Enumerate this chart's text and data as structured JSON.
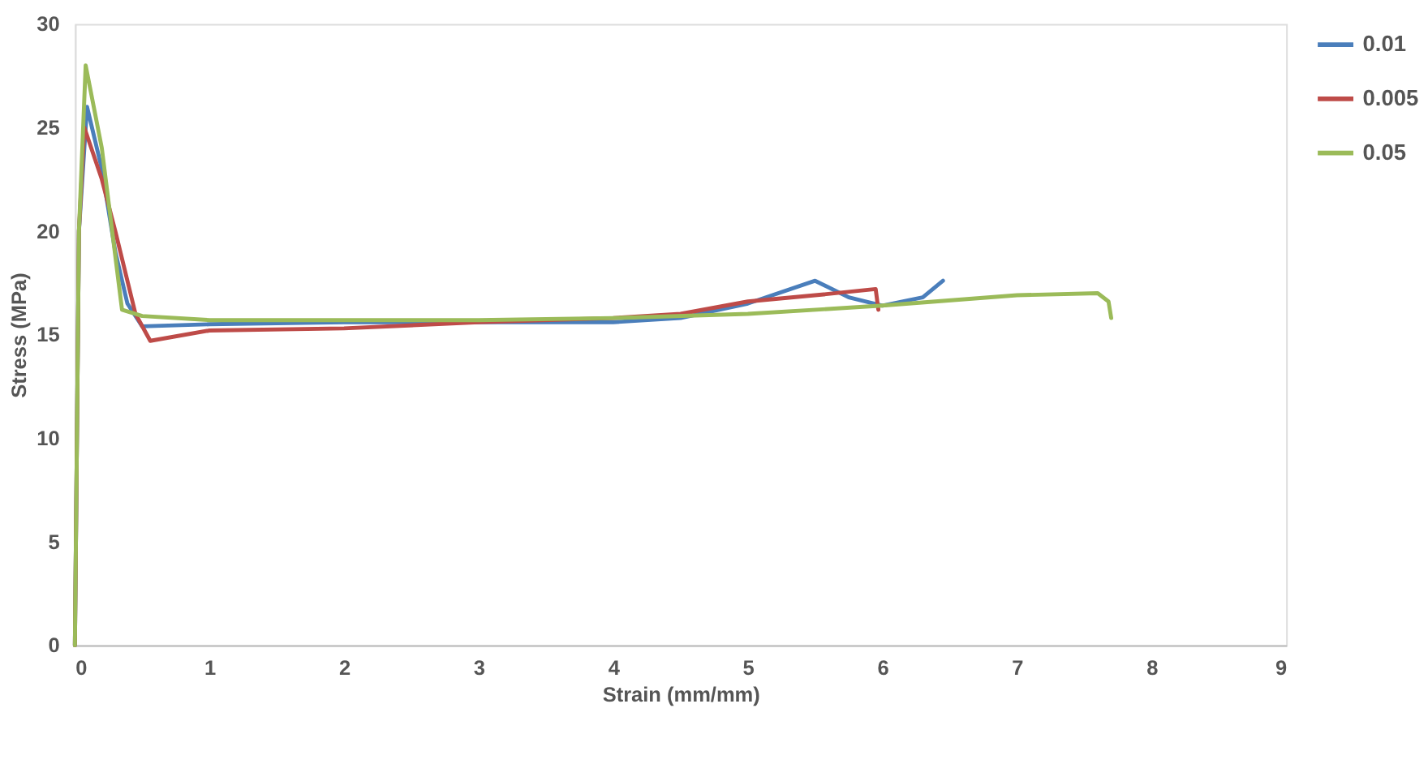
{
  "chart_data": {
    "type": "line",
    "xlabel": "Strain (mm/mm)",
    "ylabel": "Stress (MPa)",
    "xlim": [
      0,
      9
    ],
    "xticks": [
      0,
      1,
      2,
      3,
      4,
      5,
      6,
      7,
      8,
      9
    ],
    "ylim": [
      0,
      30
    ],
    "yticks": [
      0,
      5,
      10,
      15,
      20,
      25,
      30
    ],
    "grid": false,
    "legend": "top right",
    "marker": "none",
    "line_style": "solid",
    "series": [
      {
        "name": "0.01",
        "color": "#4a7ebb",
        "x": [
          0,
          0.03,
          0.09,
          0.2,
          0.3,
          0.39,
          0.5,
          1,
          2,
          3,
          4,
          4.5,
          5,
          5.5,
          5.75,
          6,
          6.3,
          6.45
        ],
        "values": [
          0,
          20,
          26,
          23,
          19,
          16.5,
          15.4,
          15.5,
          15.6,
          15.6,
          15.6,
          15.8,
          16.5,
          17.6,
          16.8,
          16.4,
          16.8,
          17.6
        ]
      },
      {
        "name": "0.005",
        "color": "#be4b48",
        "x": [
          0,
          0.03,
          0.07,
          0.2,
          0.3,
          0.45,
          0.56,
          1,
          2,
          3,
          4,
          4.5,
          5,
          5.5,
          5.95,
          5.97
        ],
        "values": [
          0,
          20,
          25,
          22.5,
          20,
          16,
          14.7,
          15.2,
          15.3,
          15.6,
          15.8,
          16,
          16.6,
          16.9,
          17.2,
          16.2
        ]
      },
      {
        "name": "0.05",
        "color": "#9bbb59",
        "x": [
          0,
          0.03,
          0.08,
          0.2,
          0.35,
          0.5,
          1,
          2,
          3,
          4,
          5,
          6,
          7,
          7.6,
          7.68,
          7.7
        ],
        "values": [
          0,
          20,
          28,
          24,
          16.2,
          15.9,
          15.7,
          15.7,
          15.7,
          15.8,
          16,
          16.4,
          16.9,
          17,
          16.6,
          15.8
        ]
      }
    ]
  }
}
